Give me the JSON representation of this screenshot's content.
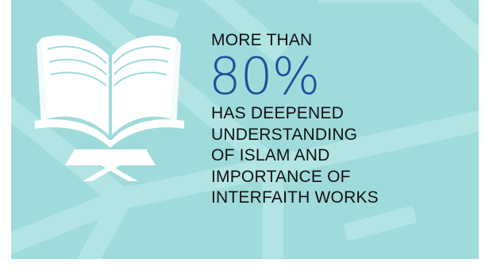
{
  "stat": {
    "intro": "MORE THAN",
    "value": "80%",
    "description_lines": [
      "HAS DEEPENED",
      "UNDERSTANDING",
      "OF ISLAM AND",
      "IMPORTANCE OF",
      "INTERFAITH WORKS"
    ]
  },
  "colors": {
    "background": "#9fdbdb",
    "pattern": "#b8e6e6",
    "accent": "#1f4f9a",
    "text": "#111111",
    "icon": "#ffffff"
  },
  "icon": "open-book-on-stand-icon"
}
